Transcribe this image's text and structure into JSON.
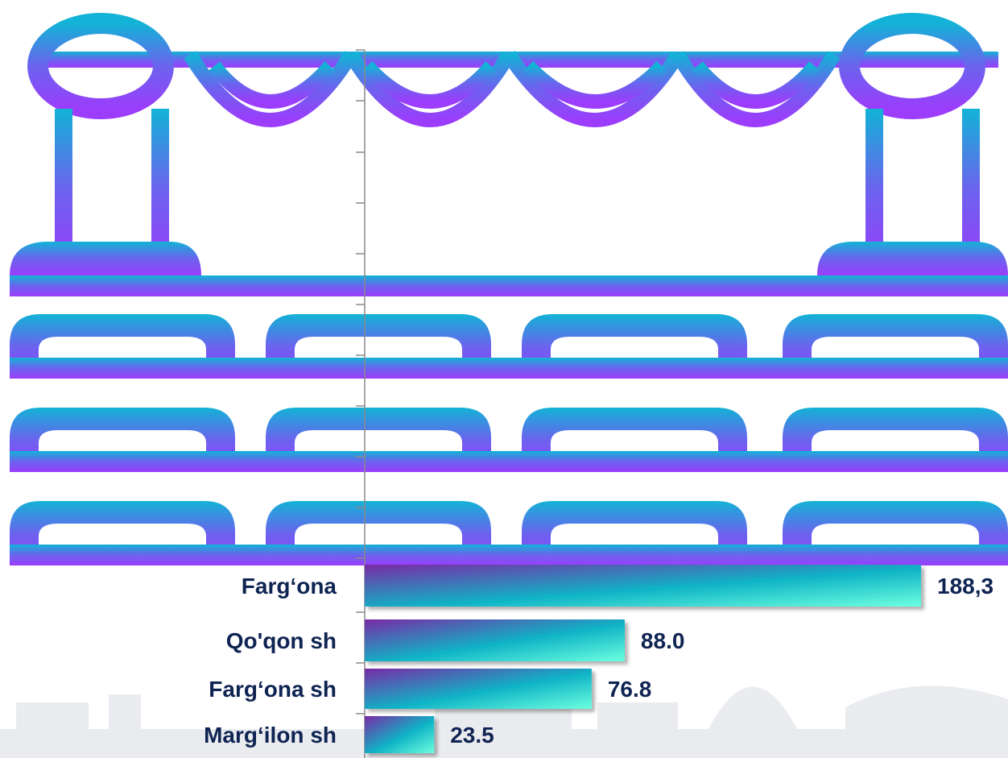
{
  "colors": {
    "illustration_top": "#12b3d6",
    "illustration_mid": "#6b63ee",
    "illustration_bottom": "#9b3dfb",
    "bar_start": "#7a2aa6",
    "bar_mid": "#0fb4c6",
    "bar_end": "#6cffe0",
    "label_text": "#0f2452",
    "axis": "#8a8a8a",
    "skyline": "#d9dce3"
  },
  "icons": [
    "theater-stage-icon",
    "city-skyline-icon"
  ],
  "chart_data": {
    "type": "bar",
    "orientation": "horizontal",
    "categories": [
      "Farg‘ona",
      "Qo'qon sh",
      "Farg‘ona sh",
      "Marg‘ilon  sh"
    ],
    "values": [
      188.3,
      88.0,
      76.8,
      23.5
    ],
    "value_labels": [
      "188,3",
      "88.0",
      "76.8",
      "23.5"
    ],
    "grid": false,
    "legend": "none"
  }
}
